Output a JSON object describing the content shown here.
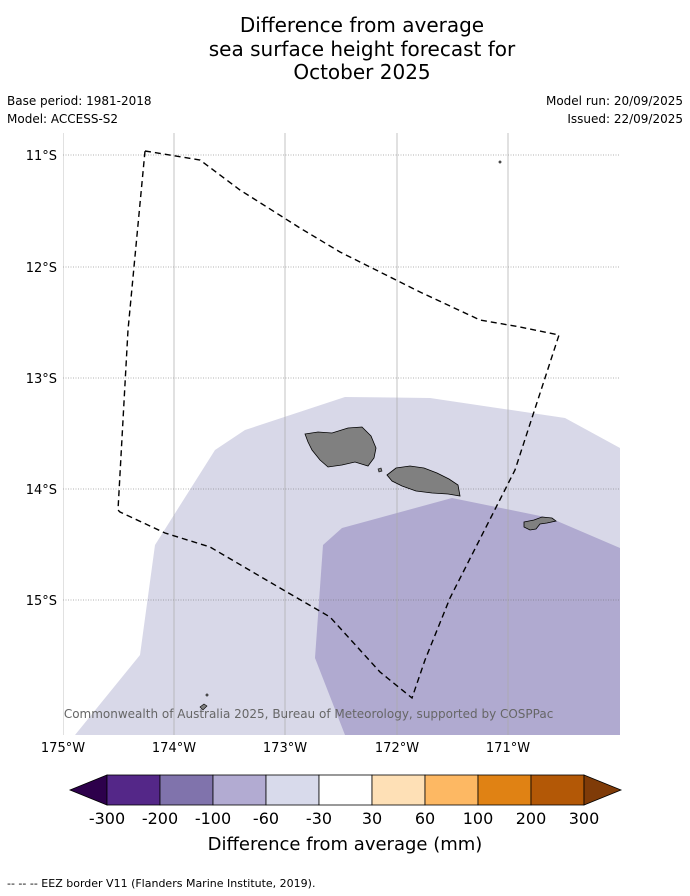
{
  "title": {
    "line1": "Difference from average",
    "line2": "sea surface height forecast for",
    "line3": "October 2025"
  },
  "meta_left": {
    "base_period": "Base period: 1981-2018",
    "model": "Model: ACCESS-S2"
  },
  "meta_right": {
    "model_run": "Model run: 20/09/2025",
    "issued": "Issued: 22/09/2025"
  },
  "map": {
    "lat_labels": [
      "11°S",
      "12°S",
      "13°S",
      "14°S",
      "15°S"
    ],
    "lon_labels": [
      "175°W",
      "174°W",
      "173°W",
      "172°W",
      "171°W"
    ],
    "copyright": "© Commonwealth of Australia 2025, Bureau of Meteorology, supported by COSPPac",
    "colors": {
      "land": "#808080",
      "anomaly_minus_60_to_minus_30": "#d8d8e8",
      "anomaly_minus_100_to_minus_60": "#b0aad0",
      "eez_border": "#000000"
    }
  },
  "colorbar": {
    "ticks": [
      "-300",
      "-200",
      "-100",
      "-60",
      "-30",
      "30",
      "60",
      "100",
      "200",
      "300"
    ],
    "colors": [
      "#2d004b",
      "#542788",
      "#8073ac",
      "#b2abd2",
      "#d8daeb",
      "#ffffff",
      "#fee0b6",
      "#fdb863",
      "#e08214",
      "#b35806",
      "#7f3b08"
    ],
    "label": "Difference from average (mm)"
  },
  "legend": {
    "eez_text": "--  --  -- EEZ border V11 (Flanders Marine Institute, 2019)."
  }
}
